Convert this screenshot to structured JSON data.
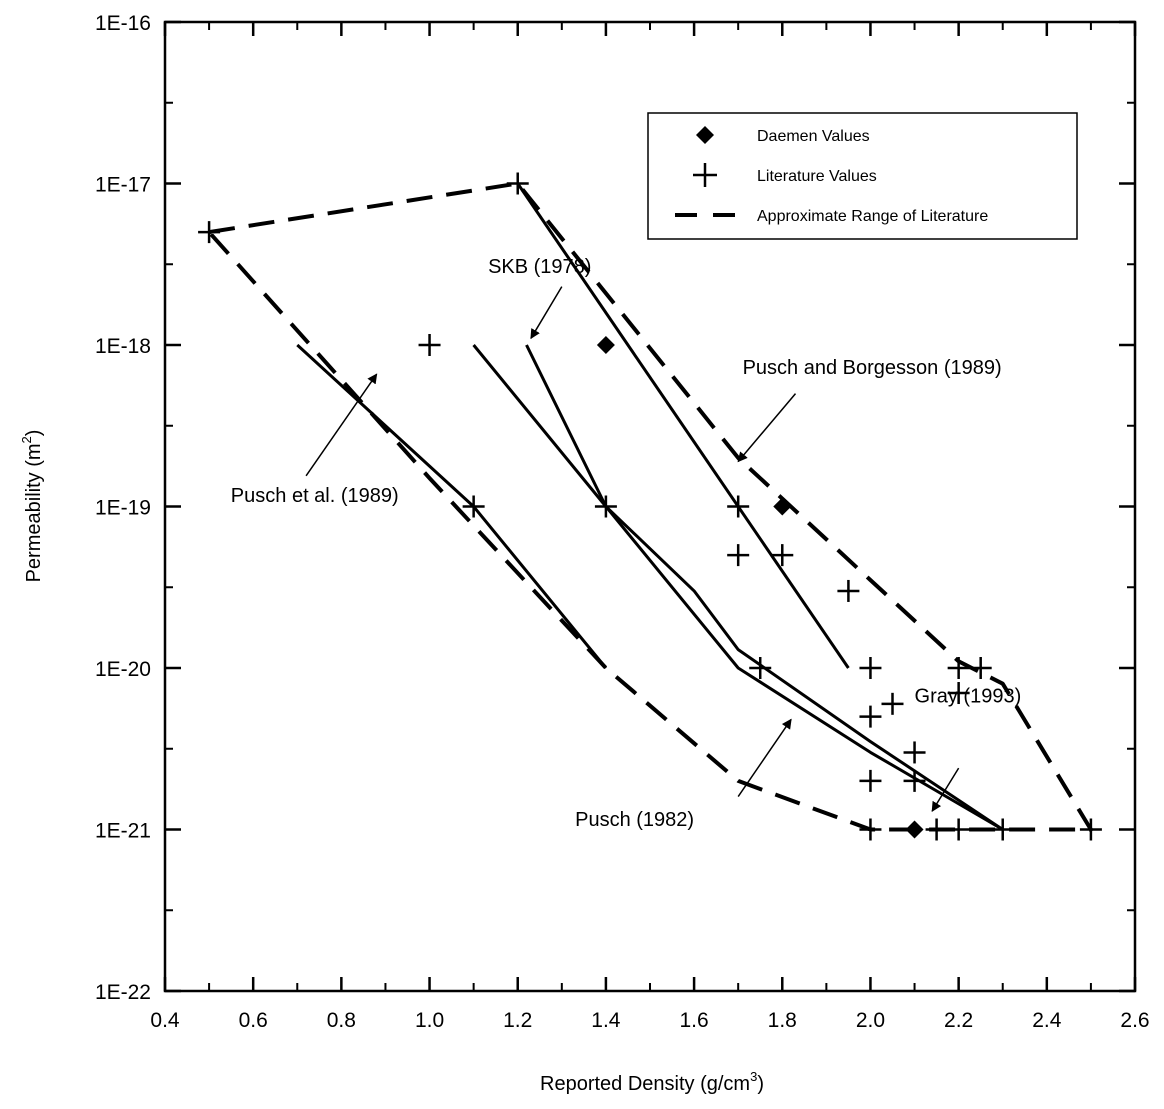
{
  "chart_data": {
    "type": "scatter",
    "title": "",
    "xlabel": {
      "main": "Reported Density (g/cm",
      "sup": "3",
      "tail": ")"
    },
    "ylabel": {
      "main": "Permeability (m",
      "sup": "2",
      "tail": ")"
    },
    "xlim": [
      0.4,
      2.6
    ],
    "ylim": [
      1e-22,
      1e-16
    ],
    "yscale": "log",
    "grid": false,
    "legend_position": "top-right",
    "x_ticks": [
      {
        "v": 0.4,
        "label": "0.4"
      },
      {
        "v": 0.6,
        "label": "0.6"
      },
      {
        "v": 0.8,
        "label": "0.8"
      },
      {
        "v": 1.0,
        "label": "1.0"
      },
      {
        "v": 1.2,
        "label": "1.2"
      },
      {
        "v": 1.4,
        "label": "1.4"
      },
      {
        "v": 1.6,
        "label": "1.6"
      },
      {
        "v": 1.8,
        "label": "1.8"
      },
      {
        "v": 2.0,
        "label": "2.0"
      },
      {
        "v": 2.2,
        "label": "2.2"
      },
      {
        "v": 2.4,
        "label": "2.4"
      },
      {
        "v": 2.6,
        "label": "2.6"
      }
    ],
    "y_ticks": [
      {
        "exp": -16,
        "label": "1E-16"
      },
      {
        "exp": -17,
        "label": "1E-17"
      },
      {
        "exp": -18,
        "label": "1E-18"
      },
      {
        "exp": -19,
        "label": "1E-19"
      },
      {
        "exp": -20,
        "label": "1E-20"
      },
      {
        "exp": -21,
        "label": "1E-21"
      },
      {
        "exp": -22,
        "label": "1E-22"
      }
    ],
    "legend": [
      {
        "marker": "diamond",
        "label": "Daemen Values"
      },
      {
        "marker": "plus",
        "label": "Literature Values"
      },
      {
        "marker": "dash",
        "label": "Approximate Range of Literature"
      }
    ],
    "daemen_values": [
      {
        "x": 1.4,
        "y": 1e-18
      },
      {
        "x": 1.8,
        "y": 1e-19
      },
      {
        "x": 2.1,
        "y": 1e-21
      }
    ],
    "literature_values": [
      {
        "x": 0.5,
        "y": 5e-18
      },
      {
        "x": 1.2,
        "y": 1e-17
      },
      {
        "x": 1.0,
        "y": 1e-18
      },
      {
        "x": 1.1,
        "y": 1e-19
      },
      {
        "x": 1.4,
        "y": 1e-19
      },
      {
        "x": 1.7,
        "y": 1e-19
      },
      {
        "x": 1.7,
        "y": 5e-20
      },
      {
        "x": 1.8,
        "y": 5e-20
      },
      {
        "x": 1.95,
        "y": 3e-20
      },
      {
        "x": 1.75,
        "y": 1e-20
      },
      {
        "x": 2.0,
        "y": 1e-20
      },
      {
        "x": 2.2,
        "y": 1e-20
      },
      {
        "x": 2.25,
        "y": 1e-20
      },
      {
        "x": 2.2,
        "y": 7e-21
      },
      {
        "x": 2.05,
        "y": 6e-21
      },
      {
        "x": 2.0,
        "y": 5e-21
      },
      {
        "x": 2.1,
        "y": 3e-21
      },
      {
        "x": 2.0,
        "y": 2e-21
      },
      {
        "x": 2.1,
        "y": 2e-21
      },
      {
        "x": 2.0,
        "y": 1e-21
      },
      {
        "x": 2.15,
        "y": 1e-21
      },
      {
        "x": 2.2,
        "y": 1e-21
      },
      {
        "x": 2.3,
        "y": 1e-21
      },
      {
        "x": 2.5,
        "y": 1e-21
      }
    ],
    "range_boundary": [
      [
        {
          "x": 0.5,
          "y": 5e-18
        },
        {
          "x": 1.2,
          "y": 1e-17
        },
        {
          "x": 1.7,
          "y": 2e-19
        },
        {
          "x": 2.0,
          "y": 3.5e-20
        },
        {
          "x": 2.2,
          "y": 1.1e-20
        },
        {
          "x": 2.3,
          "y": 8e-21
        },
        {
          "x": 2.5,
          "y": 1e-21
        },
        {
          "x": 2.3,
          "y": 1e-21
        },
        {
          "x": 2.0,
          "y": 1e-21
        },
        {
          "x": 1.7,
          "y": 2e-21
        },
        {
          "x": 1.4,
          "y": 1e-20
        },
        {
          "x": 1.0,
          "y": 1.5e-19
        },
        {
          "x": 0.5,
          "y": 5e-18
        }
      ]
    ],
    "curves": [
      {
        "points": [
          {
            "x": 1.2,
            "y": 1e-17
          },
          {
            "x": 1.95,
            "y": 1e-20
          }
        ]
      },
      {
        "points": [
          {
            "x": 1.22,
            "y": 1e-18
          },
          {
            "x": 1.4,
            "y": 1e-19
          },
          {
            "x": 1.6,
            "y": 3e-20
          },
          {
            "x": 1.7,
            "y": 1.3e-20
          },
          {
            "x": 2.0,
            "y": 3.5e-21
          },
          {
            "x": 2.3,
            "y": 1e-21
          }
        ]
      },
      {
        "points": [
          {
            "x": 1.1,
            "y": 1e-18
          },
          {
            "x": 1.4,
            "y": 1e-19
          },
          {
            "x": 1.7,
            "y": 1e-20
          },
          {
            "x": 2.0,
            "y": 3e-21
          },
          {
            "x": 2.3,
            "y": 1e-21
          }
        ]
      },
      {
        "points": [
          {
            "x": 0.7,
            "y": 1e-18
          },
          {
            "x": 1.1,
            "y": 1e-19
          },
          {
            "x": 1.4,
            "y": 1e-20
          }
        ]
      }
    ],
    "annotations": [
      {
        "text": "SKB (1978)",
        "x": 1.25,
        "y": 2.8e-18,
        "anchor": "middle",
        "arrow": [
          {
            "x": 1.3,
            "y": 2.3e-18
          },
          {
            "x": 1.23,
            "y": 1.1e-18
          }
        ]
      },
      {
        "text": "Pusch and Borgesson (1989)",
        "x": 1.71,
        "y": 6.6e-19,
        "anchor": "start",
        "arrow": [
          {
            "x": 1.83,
            "y": 5e-19
          },
          {
            "x": 1.7,
            "y": 1.9e-19
          }
        ]
      },
      {
        "text": "Pusch et al. (1989)",
        "x": 0.93,
        "y": 1.07e-19,
        "anchor": "end",
        "arrow": [
          {
            "x": 0.72,
            "y": 1.55e-19
          },
          {
            "x": 0.88,
            "y": 6.6e-19
          }
        ]
      },
      {
        "text": "Gray (1993)",
        "x": 2.1,
        "y": 6.1e-21,
        "anchor": "start",
        "arrow": [
          {
            "x": 2.2,
            "y": 2.4e-21
          },
          {
            "x": 2.14,
            "y": 1.3e-21
          }
        ]
      },
      {
        "text": "Pusch (1982)",
        "x": 1.6,
        "y": 1.05e-21,
        "anchor": "end",
        "arrow": [
          {
            "x": 1.7,
            "y": 1.6e-21
          },
          {
            "x": 1.82,
            "y": 4.8e-21
          }
        ]
      }
    ]
  }
}
